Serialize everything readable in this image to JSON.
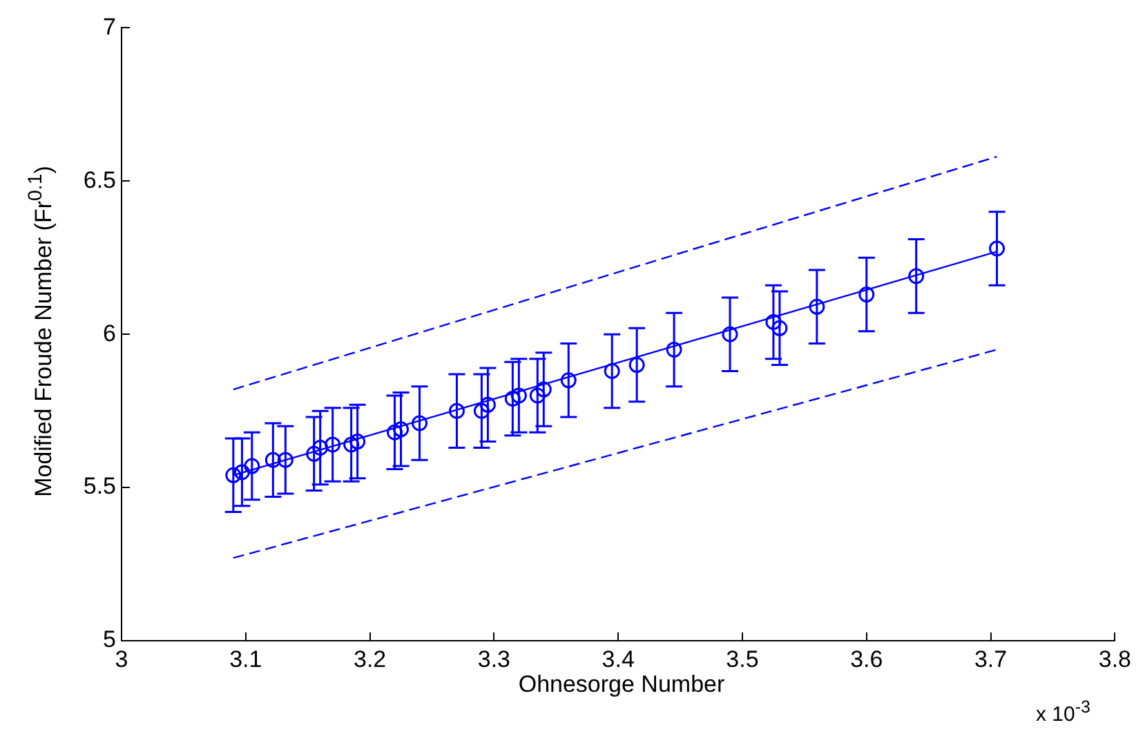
{
  "chart_data": {
    "type": "scatter",
    "xlabel": "Ohnesorge Number",
    "ylabel": "Modified Froude Number (Fr$^{0.1}$)",
    "annotations": [
      "x 10$^{-3}$"
    ],
    "xlim": [
      3,
      3.8
    ],
    "xticks": [
      3,
      3.1,
      3.2,
      3.3,
      3.4,
      3.5,
      3.6,
      3.7,
      3.8
    ],
    "ylim": [
      5,
      7
    ],
    "yticks": [
      5,
      5.5,
      6,
      6.5,
      7
    ],
    "grid": false,
    "legend": false,
    "series": [
      {
        "marker": "circle",
        "color": "#0000ff",
        "x": [
          3.09,
          3.097,
          3.105,
          3.122,
          3.132,
          3.155,
          3.16,
          3.17,
          3.185,
          3.19,
          3.22,
          3.225,
          3.24,
          3.27,
          3.29,
          3.295,
          3.315,
          3.32,
          3.335,
          3.34,
          3.36,
          3.395,
          3.415,
          3.445,
          3.49,
          3.525,
          3.53,
          3.56,
          3.6,
          3.64,
          3.705
        ],
        "values": [
          5.54,
          5.55,
          5.57,
          5.59,
          5.59,
          5.61,
          5.63,
          5.64,
          5.64,
          5.65,
          5.68,
          5.69,
          5.71,
          5.75,
          5.75,
          5.77,
          5.79,
          5.8,
          5.8,
          5.82,
          5.85,
          5.88,
          5.9,
          5.95,
          6.0,
          6.04,
          6.02,
          6.09,
          6.13,
          6.19,
          6.28
        ],
        "errors": [
          0.12,
          0.11,
          0.11,
          0.12,
          0.11,
          0.12,
          0.12,
          0.12,
          0.12,
          0.12,
          0.12,
          0.12,
          0.12,
          0.12,
          0.12,
          0.12,
          0.12,
          0.12,
          0.12,
          0.12,
          0.12,
          0.12,
          0.12,
          0.12,
          0.12,
          0.12,
          0.12,
          0.12,
          0.12,
          0.12,
          0.12
        ]
      },
      {
        "type": "line",
        "color": "#0000ff",
        "line_style": "dashed",
        "x": [
          3.09,
          3.705
        ],
        "values": [
          5.82,
          6.58
        ]
      },
      {
        "type": "line",
        "color": "#0000ff",
        "line_style": "solid",
        "x": [
          3.09,
          3.705
        ],
        "values": [
          5.54,
          6.27
        ]
      },
      {
        "type": "line",
        "color": "#0000ff",
        "line_style": "dashed",
        "x": [
          3.09,
          3.705
        ],
        "values": [
          5.27,
          5.95
        ]
      }
    ]
  }
}
